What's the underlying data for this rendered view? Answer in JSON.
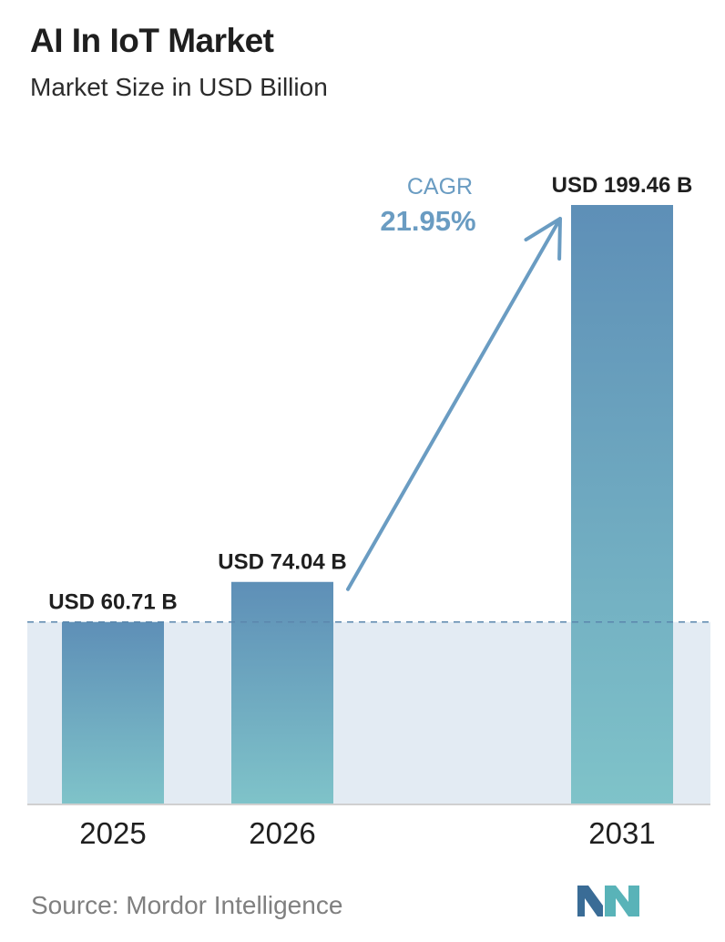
{
  "header": {
    "title": "AI In IoT Market",
    "subtitle": "Market Size in USD Billion"
  },
  "cagr": {
    "label": "CAGR",
    "value": "21.95%"
  },
  "footer": {
    "source": "Source:  Mordor Intelligence"
  },
  "colors": {
    "bar_top": "#5e8fb7",
    "bar_bottom": "#7fc3c9",
    "band": "#e3ebf3",
    "accent": "#6a9cc2",
    "baseline": "#d0d0d0"
  },
  "chart_data": {
    "type": "bar",
    "title": "AI In IoT Market",
    "subtitle": "Market Size in USD Billion",
    "categories": [
      "2025",
      "2026",
      "2031"
    ],
    "values": [
      60.71,
      74.04,
      199.46
    ],
    "value_labels": [
      "USD 60.71 B",
      "USD 74.04 B",
      "USD 199.46 B"
    ],
    "unit": "USD Billion",
    "ylim": [
      0,
      199.46
    ],
    "reference_line": 60.71,
    "annotation": {
      "label": "CAGR",
      "value": "21.95%"
    },
    "grid": false,
    "legend": "none"
  }
}
